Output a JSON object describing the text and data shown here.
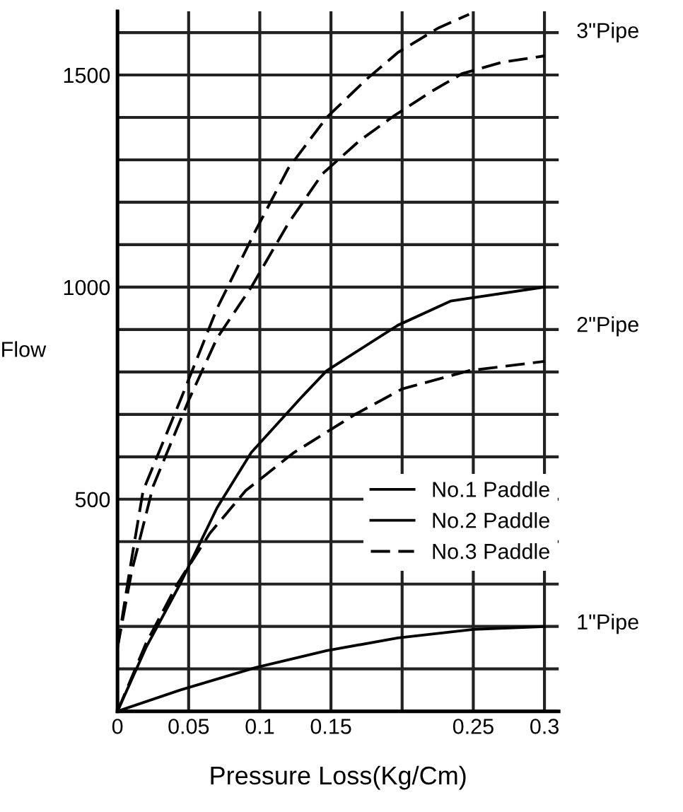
{
  "chart_data": {
    "type": "line",
    "xlabel": "Pressure Loss(Kg/Cm)",
    "ylabel": "Flow",
    "xlim": [
      0,
      0.31
    ],
    "ylim": [
      0,
      1650
    ],
    "xticks": [
      0,
      0.05,
      0.1,
      0.15,
      {
        "value": 0.2,
        "label": null
      },
      0.25,
      0.3
    ],
    "yticks": [
      {
        "value": 0,
        "label": null
      },
      {
        "value": 100,
        "label": null
      },
      {
        "value": 200,
        "label": null
      },
      {
        "value": 300,
        "label": null
      },
      {
        "value": 400,
        "label": null
      },
      500,
      {
        "value": 600,
        "label": null
      },
      {
        "value": 700,
        "label": null
      },
      {
        "value": 800,
        "label": null
      },
      {
        "value": 900,
        "label": null
      },
      1000,
      {
        "value": 1100,
        "label": null
      },
      {
        "value": 1200,
        "label": null
      },
      {
        "value": 1300,
        "label": null
      },
      {
        "value": 1400,
        "label": null
      },
      1500,
      {
        "value": 1600,
        "label": null
      }
    ],
    "grid": true,
    "legend": "right",
    "marker": "none",
    "series": [
      {
        "name": "No.1 Paddle",
        "color": "#000000",
        "line_style": "solid",
        "x": [
          0,
          0.044,
          0.097,
          0.147,
          0.197,
          0.25,
          0.3
        ],
        "values": [
          0,
          50,
          103,
          143,
          173,
          193,
          200
        ]
      },
      {
        "name": "No.2 Paddle",
        "color": "#000000",
        "line_style": "solid",
        "x": [
          0,
          0.02,
          0.044,
          0.07,
          0.094,
          0.13,
          0.147,
          0.197,
          0.234,
          0.3
        ],
        "values": [
          0,
          150,
          300,
          480,
          610,
          743,
          803,
          910,
          967,
          1000
        ]
      },
      {
        "name": "No.3 Paddle",
        "color": "#000000",
        "line_style": "dashed",
        "x": [
          0,
          0.008,
          0.018,
          0.045,
          0.07,
          0.097,
          0.12,
          0.147,
          0.175,
          0.197,
          0.225,
          0.247
        ],
        "values": [
          150,
          320,
          520,
          740,
          950,
          1133,
          1280,
          1400,
          1490,
          1553,
          1610,
          1643
        ]
      },
      {
        "color": "#000000",
        "line_style": "dashed",
        "x": [
          0,
          0.01,
          0.025,
          0.05,
          0.07,
          0.094,
          0.12,
          0.144,
          0.17,
          0.194,
          0.22,
          0.242,
          0.27,
          0.3
        ],
        "values": [
          150,
          330,
          530,
          733,
          880,
          1000,
          1150,
          1267,
          1345,
          1403,
          1460,
          1503,
          1530,
          1545
        ]
      },
      {
        "color": "#000000",
        "line_style": "dashed",
        "x": [
          0,
          0.02,
          0.042,
          0.065,
          0.09,
          0.124,
          0.167,
          0.2,
          0.247,
          0.3
        ],
        "values": [
          0,
          160,
          300,
          420,
          520,
          610,
          700,
          760,
          803,
          825
        ]
      }
    ],
    "annotations": [
      "3\"Pipe",
      "2\"Pipe",
      "1\"Pipe"
    ]
  }
}
